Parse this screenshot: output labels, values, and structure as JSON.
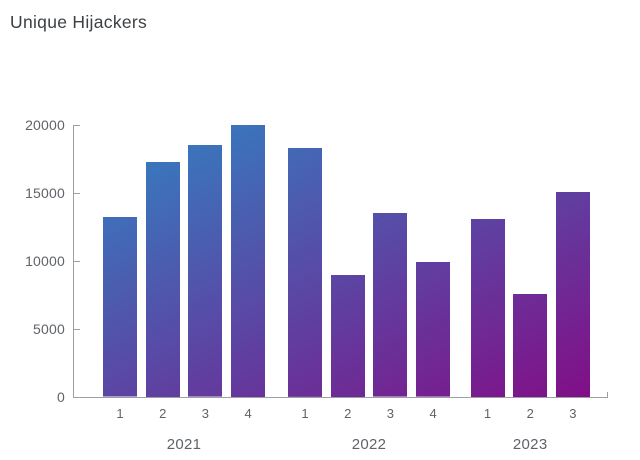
{
  "title": "Unique Hijackers",
  "chart_data": {
    "type": "bar",
    "title": "Unique Hijackers",
    "xlabel": "",
    "ylabel": "",
    "grid": false,
    "legend": "none",
    "ylim": [
      0,
      20000
    ],
    "y_ticks": [
      0,
      5000,
      10000,
      15000,
      20000
    ],
    "groups": [
      {
        "year": "2021",
        "quarters": [
          "1",
          "2",
          "3",
          "4"
        ],
        "values": [
          13200,
          17300,
          18500,
          20000
        ]
      },
      {
        "year": "2022",
        "quarters": [
          "1",
          "2",
          "3",
          "4"
        ],
        "values": [
          18300,
          9000,
          13500,
          9900
        ]
      },
      {
        "year": "2023",
        "quarters": [
          "1",
          "2",
          "3"
        ],
        "values": [
          13100,
          7600,
          15100
        ]
      }
    ],
    "colors": {
      "gradient_start": "#2e87c5",
      "gradient_end": "#830c86",
      "axis_line": "#9aa0a6",
      "tick_label": "#5f6368",
      "title_text": "#3c4043"
    }
  }
}
